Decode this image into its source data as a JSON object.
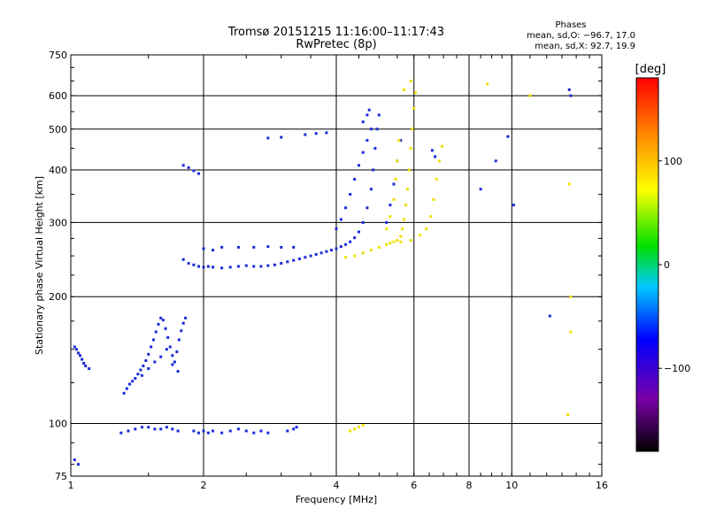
{
  "header": {
    "title_line1": "Tromsø 20151215 11:16:00–11:17:43",
    "title_line2": "RwPretec (8p)",
    "phases_label": "Phases",
    "phases_o": "mean, sd,O: −96.7, 17.0",
    "phases_x": "mean, sd,X:  92.7, 19.9"
  },
  "colors": {
    "background": "#ffffff",
    "grid": "#000000",
    "o_mode": "#1a2ad8",
    "x_mode": "#f0e000"
  },
  "colorbar": {
    "unit_label": "[deg]",
    "range": [
      -180,
      180
    ],
    "ticks": [
      100,
      0,
      -100
    ],
    "tick_labels": [
      "100",
      "0",
      "−100"
    ],
    "colormap": "rainbow (black→purple→blue→cyan→green→yellow→red)"
  },
  "chart_data": {
    "type": "scatter",
    "title": "Tromsø 20151215 11:16:00–11:17:43",
    "subtitle": "RwPretec (8p)",
    "xlabel": "Frequency [MHz]",
    "ylabel": "Stationary phase Virtual Height [km]",
    "x_scale": "log",
    "y_scale": "log",
    "xlim": [
      1,
      16
    ],
    "ylim": [
      75,
      750
    ],
    "x_ticks": [
      1,
      2,
      4,
      6,
      8,
      10,
      16
    ],
    "x_tick_labels": [
      "1",
      "2",
      "4",
      "6",
      "8",
      "10",
      "16"
    ],
    "y_ticks": [
      75,
      100,
      200,
      300,
      400,
      500,
      600,
      750
    ],
    "y_tick_labels": [
      "75",
      "100",
      "200",
      "300",
      "400",
      "500",
      "600",
      "750"
    ],
    "grid": true,
    "color_scale_label": "[deg]",
    "series": [
      {
        "name": "O",
        "color_phase": -96.7,
        "points": [
          [
            1.02,
            152
          ],
          [
            1.03,
            150
          ],
          [
            1.04,
            147
          ],
          [
            1.05,
            145
          ],
          [
            1.06,
            142
          ],
          [
            1.07,
            139
          ],
          [
            1.08,
            137
          ],
          [
            1.1,
            135
          ],
          [
            1.02,
            82
          ],
          [
            1.04,
            80
          ],
          [
            1.32,
            118
          ],
          [
            1.34,
            121
          ],
          [
            1.36,
            124
          ],
          [
            1.38,
            126
          ],
          [
            1.4,
            128
          ],
          [
            1.42,
            131
          ],
          [
            1.44,
            134
          ],
          [
            1.46,
            137
          ],
          [
            1.48,
            141
          ],
          [
            1.5,
            146
          ],
          [
            1.52,
            152
          ],
          [
            1.54,
            158
          ],
          [
            1.56,
            165
          ],
          [
            1.58,
            172
          ],
          [
            1.6,
            178
          ],
          [
            1.62,
            176
          ],
          [
            1.64,
            168
          ],
          [
            1.66,
            160
          ],
          [
            1.68,
            152
          ],
          [
            1.7,
            145
          ],
          [
            1.72,
            140
          ],
          [
            1.74,
            148
          ],
          [
            1.76,
            158
          ],
          [
            1.78,
            166
          ],
          [
            1.8,
            173
          ],
          [
            1.82,
            178
          ],
          [
            1.45,
            130
          ],
          [
            1.5,
            135
          ],
          [
            1.55,
            140
          ],
          [
            1.6,
            144
          ],
          [
            1.65,
            150
          ],
          [
            1.7,
            138
          ],
          [
            1.75,
            133
          ],
          [
            1.3,
            95
          ],
          [
            1.35,
            96
          ],
          [
            1.4,
            97
          ],
          [
            1.45,
            98
          ],
          [
            1.5,
            98
          ],
          [
            1.55,
            97
          ],
          [
            1.6,
            97
          ],
          [
            1.65,
            98
          ],
          [
            1.7,
            97
          ],
          [
            1.75,
            96
          ],
          [
            1.9,
            96
          ],
          [
            1.95,
            95
          ],
          [
            2.0,
            96
          ],
          [
            2.05,
            95
          ],
          [
            2.1,
            96
          ],
          [
            2.2,
            95
          ],
          [
            2.3,
            96
          ],
          [
            2.4,
            97
          ],
          [
            2.5,
            96
          ],
          [
            2.6,
            95
          ],
          [
            2.7,
            96
          ],
          [
            2.8,
            95
          ],
          [
            3.1,
            96
          ],
          [
            3.2,
            97
          ],
          [
            3.25,
            98
          ],
          [
            1.8,
            410
          ],
          [
            1.85,
            405
          ],
          [
            1.9,
            398
          ],
          [
            1.95,
            392
          ],
          [
            1.8,
            245
          ],
          [
            1.85,
            240
          ],
          [
            1.9,
            238
          ],
          [
            1.95,
            236
          ],
          [
            2.0,
            235
          ],
          [
            2.05,
            236
          ],
          [
            2.1,
            235
          ],
          [
            2.2,
            234
          ],
          [
            2.3,
            235
          ],
          [
            2.4,
            236
          ],
          [
            2.5,
            237
          ],
          [
            2.6,
            236
          ],
          [
            2.7,
            236
          ],
          [
            2.8,
            237
          ],
          [
            2.9,
            238
          ],
          [
            3.0,
            240
          ],
          [
            3.1,
            242
          ],
          [
            3.2,
            244
          ],
          [
            3.3,
            246
          ],
          [
            3.4,
            248
          ],
          [
            3.5,
            250
          ],
          [
            3.6,
            252
          ],
          [
            3.7,
            254
          ],
          [
            3.8,
            256
          ],
          [
            3.9,
            258
          ],
          [
            4.0,
            260
          ],
          [
            4.1,
            263
          ],
          [
            4.2,
            266
          ],
          [
            4.3,
            270
          ],
          [
            4.4,
            276
          ],
          [
            4.5,
            285
          ],
          [
            4.6,
            300
          ],
          [
            4.7,
            325
          ],
          [
            4.8,
            360
          ],
          [
            4.85,
            400
          ],
          [
            4.9,
            450
          ],
          [
            4.95,
            500
          ],
          [
            5.0,
            540
          ],
          [
            2.0,
            260
          ],
          [
            2.1,
            258
          ],
          [
            2.2,
            262
          ],
          [
            2.4,
            262
          ],
          [
            2.6,
            262
          ],
          [
            2.8,
            263
          ],
          [
            3.0,
            262
          ],
          [
            3.2,
            262
          ],
          [
            4.0,
            290
          ],
          [
            4.1,
            305
          ],
          [
            4.2,
            325
          ],
          [
            4.3,
            350
          ],
          [
            4.4,
            380
          ],
          [
            4.5,
            410
          ],
          [
            4.6,
            440
          ],
          [
            4.7,
            470
          ],
          [
            4.8,
            500
          ],
          [
            4.6,
            520
          ],
          [
            4.7,
            540
          ],
          [
            4.75,
            555
          ],
          [
            3.4,
            485
          ],
          [
            3.6,
            488
          ],
          [
            3.8,
            490
          ],
          [
            3.0,
            478
          ],
          [
            2.8,
            476
          ],
          [
            5.2,
            300
          ],
          [
            5.3,
            330
          ],
          [
            5.4,
            370
          ],
          [
            5.5,
            420
          ],
          [
            5.6,
            470
          ],
          [
            6.6,
            445
          ],
          [
            6.7,
            430
          ],
          [
            8.5,
            360
          ],
          [
            9.2,
            420
          ],
          [
            9.8,
            480
          ],
          [
            10.1,
            330
          ],
          [
            12.2,
            180
          ],
          [
            13.5,
            620
          ],
          [
            13.6,
            600
          ]
        ]
      },
      {
        "name": "X",
        "color_phase": 92.7,
        "points": [
          [
            4.2,
            248
          ],
          [
            4.4,
            250
          ],
          [
            4.6,
            254
          ],
          [
            4.8,
            258
          ],
          [
            5.0,
            262
          ],
          [
            5.2,
            266
          ],
          [
            5.4,
            270
          ],
          [
            5.5,
            272
          ],
          [
            5.6,
            278
          ],
          [
            5.65,
            290
          ],
          [
            5.7,
            305
          ],
          [
            5.75,
            330
          ],
          [
            5.8,
            360
          ],
          [
            5.85,
            400
          ],
          [
            5.9,
            450
          ],
          [
            5.95,
            500
          ],
          [
            6.0,
            560
          ],
          [
            6.05,
            610
          ],
          [
            5.2,
            290
          ],
          [
            5.3,
            310
          ],
          [
            5.4,
            340
          ],
          [
            5.45,
            380
          ],
          [
            5.5,
            420
          ],
          [
            5.55,
            470
          ],
          [
            5.3,
            268
          ],
          [
            5.6,
            270
          ],
          [
            5.9,
            272
          ],
          [
            6.2,
            280
          ],
          [
            6.4,
            290
          ],
          [
            6.55,
            310
          ],
          [
            6.65,
            340
          ],
          [
            6.75,
            380
          ],
          [
            6.85,
            420
          ],
          [
            6.95,
            455
          ],
          [
            4.3,
            96
          ],
          [
            4.4,
            97
          ],
          [
            4.5,
            98
          ],
          [
            4.6,
            99
          ],
          [
            5.9,
            650
          ],
          [
            5.7,
            620
          ],
          [
            8.8,
            640
          ],
          [
            11.0,
            600
          ],
          [
            13.5,
            370
          ],
          [
            13.6,
            200
          ],
          [
            13.6,
            165
          ],
          [
            13.4,
            105
          ]
        ]
      }
    ]
  }
}
